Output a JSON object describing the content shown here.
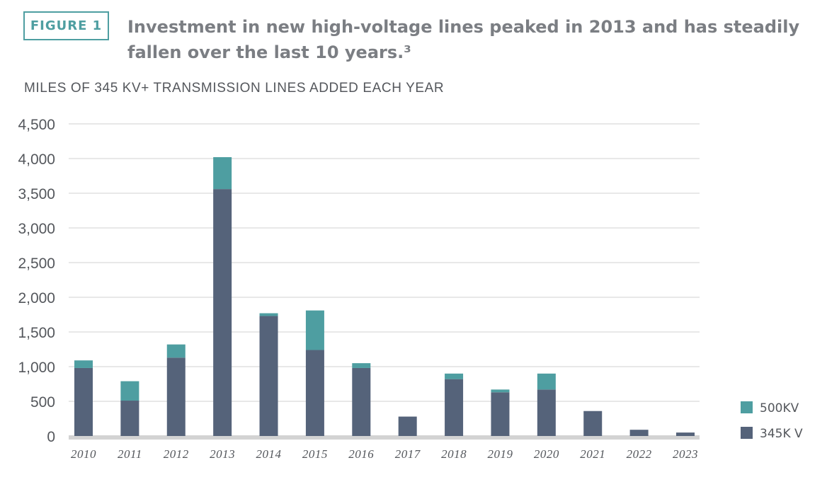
{
  "figure_label": "FIGURE 1",
  "title": "Investment in new high-voltage lines peaked in 2013 and has steadily fallen over the last 10 years.³",
  "chart_data": {
    "type": "bar",
    "stacked": true,
    "title": "MILES OF 345 KV+ TRANSMISSION LINES ADDED EACH YEAR",
    "categories": [
      "2010",
      "2011",
      "2012",
      "2013",
      "2014",
      "2015",
      "2016",
      "2017",
      "2018",
      "2019",
      "2020",
      "2021",
      "2022",
      "2023"
    ],
    "series": [
      {
        "name": "345K V",
        "color": "#55637a",
        "values": [
          980,
          510,
          1130,
          3560,
          1730,
          1240,
          980,
          280,
          820,
          630,
          670,
          360,
          90,
          50
        ]
      },
      {
        "name": "500KV",
        "color": "#4e9ea1",
        "values": [
          110,
          280,
          190,
          460,
          40,
          570,
          70,
          0,
          80,
          40,
          230,
          0,
          0,
          0
        ]
      }
    ],
    "y_ticks": [
      0,
      500,
      1000,
      1500,
      2000,
      2500,
      3000,
      3500,
      4000,
      4500
    ],
    "y_tick_labels": [
      "0",
      "500",
      "1,000",
      "1,500",
      "2,000",
      "2,500",
      "3,000",
      "3,500",
      "4,000",
      "4,500"
    ],
    "ylim": [
      0,
      4500
    ],
    "grid": true,
    "legend_position": "bottom-right",
    "legend": [
      "500KV",
      "345K V"
    ]
  }
}
